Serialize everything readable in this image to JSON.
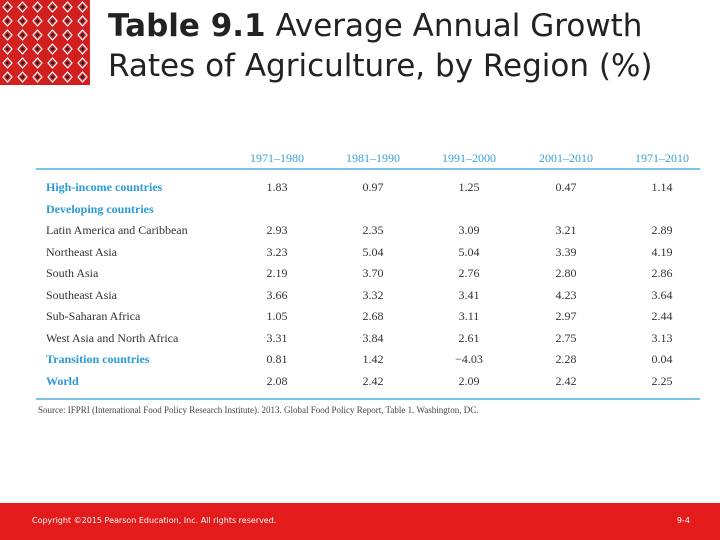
{
  "title": {
    "label": "Table 9.1",
    "text": "Average Annual Growth Rates of Agriculture, by Region (%)"
  },
  "table": {
    "columns": [
      "1971–1980",
      "1981–1990",
      "1991–2000",
      "2001–2010",
      "1971–2010"
    ],
    "rows": [
      {
        "label": "High-income countries",
        "heading": true,
        "cells": [
          "1.83",
          "0.97",
          "1.25",
          "0.47",
          "1.14"
        ]
      },
      {
        "label": "Developing countries",
        "heading": true,
        "cells": []
      },
      {
        "label": "Latin America and Caribbean",
        "heading": false,
        "cells": [
          "2.93",
          "2.35",
          "3.09",
          "3.21",
          "2.89"
        ]
      },
      {
        "label": "Northeast Asia",
        "heading": false,
        "cells": [
          "3.23",
          "5.04",
          "5.04",
          "3.39",
          "4.19"
        ]
      },
      {
        "label": "South Asia",
        "heading": false,
        "cells": [
          "2.19",
          "3.70",
          "2.76",
          "2.80",
          "2.86"
        ]
      },
      {
        "label": "Southeast Asia",
        "heading": false,
        "cells": [
          "3.66",
          "3.32",
          "3.41",
          "4.23",
          "3.64"
        ]
      },
      {
        "label": "Sub-Saharan Africa",
        "heading": false,
        "cells": [
          "1.05",
          "2.68",
          "3.11",
          "2.97",
          "2.44"
        ]
      },
      {
        "label": "West Asia and North Africa",
        "heading": false,
        "cells": [
          "3.31",
          "3.84",
          "2.61",
          "2.75",
          "3.13"
        ]
      },
      {
        "label": "Transition countries",
        "heading": true,
        "cells": [
          "0.81",
          "1.42",
          "−4.03",
          "2.28",
          "0.04"
        ]
      },
      {
        "label": "World",
        "heading": true,
        "cells": [
          "2.08",
          "2.42",
          "2.09",
          "2.42",
          "2.25"
        ]
      }
    ],
    "source": "Source: IFPRI (International Food Policy Research Institute). 2013. Global Food Policy Report, Table 1. Washington, DC."
  },
  "footer": {
    "copyright": "Copyright ©2015 Pearson Education, Inc. All rights reserved.",
    "page": "9-4"
  }
}
